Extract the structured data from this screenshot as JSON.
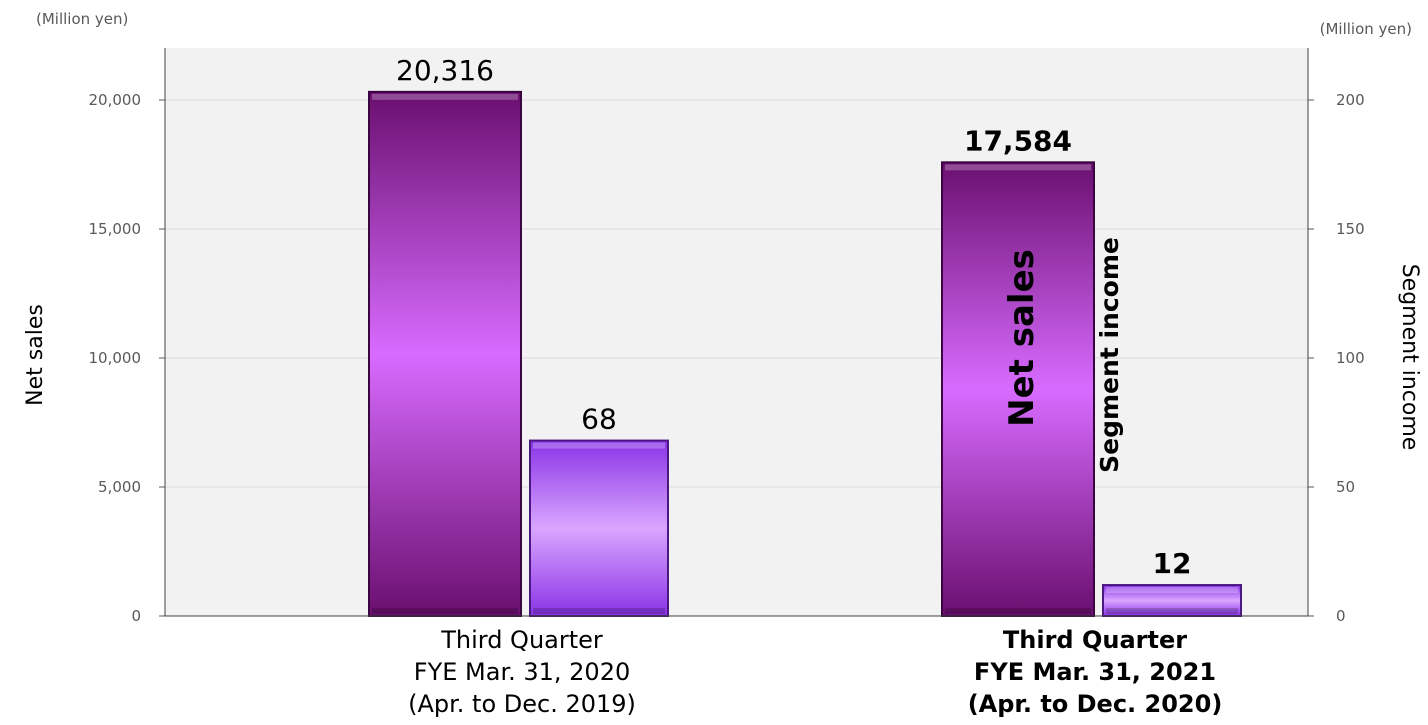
{
  "chart_data": {
    "type": "bar",
    "categories": [
      [
        "Third Quarter",
        "FYE Mar. 31, 2020",
        "(Apr. to Dec. 2019)"
      ],
      [
        "Third Quarter",
        "FYE Mar. 31, 2021",
        "(Apr. to Dec. 2020)"
      ]
    ],
    "series": [
      {
        "name": "Net sales",
        "axis": "left",
        "values": [
          20316,
          17584
        ],
        "labels": [
          "20,316",
          "17,584"
        ],
        "colors": {
          "dark": "#6a0f6f",
          "light": "#d86bff",
          "edge": "#3a0440"
        }
      },
      {
        "name": "Segment income",
        "axis": "right",
        "values": [
          68,
          12
        ],
        "labels": [
          "68",
          "12"
        ],
        "colors": {
          "dark": "#8a33e6",
          "light": "#d9a6ff",
          "edge": "#4a1880"
        }
      }
    ],
    "left_axis": {
      "title": "Net sales",
      "unit": "(Million yen)",
      "range": [
        0,
        22000
      ],
      "ticks": [
        0,
        5000,
        10000,
        15000,
        20000
      ],
      "tick_labels": [
        "0",
        "5,000",
        "10,000",
        "15,000",
        "20,000"
      ]
    },
    "right_axis": {
      "title": "Segment income",
      "unit": "(Million yen)",
      "range": [
        0,
        220
      ],
      "ticks": [
        0,
        50,
        100,
        150,
        200
      ],
      "tick_labels": [
        "0",
        "50",
        "100",
        "150",
        "200"
      ]
    },
    "in_bar_labels": [
      "Net sales",
      "Segment income"
    ],
    "highlighted_category": 1,
    "grid": true,
    "plot_background": "#f2f2f2",
    "gridline_color": "#d9d9d9"
  }
}
